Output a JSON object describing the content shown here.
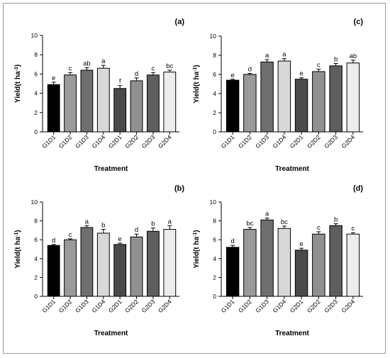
{
  "chart_data": [
    {
      "type": "bar",
      "panel_label": "(a)",
      "categories": [
        "G1D1",
        "G1D2",
        "G1D3",
        "G1D4",
        "G2D1",
        "G2D2",
        "G2D3",
        "G2D4"
      ],
      "values": [
        4.9,
        5.9,
        6.4,
        6.6,
        4.5,
        5.3,
        5.9,
        6.2
      ],
      "errors": [
        0.25,
        0.25,
        0.25,
        0.3,
        0.3,
        0.3,
        0.25,
        0.2
      ],
      "letters": [
        "e",
        "c",
        "ab",
        "a",
        "f",
        "d",
        "c",
        "bc"
      ],
      "colors": [
        "#000000",
        "#9a9a9a",
        "#6f6f6f",
        "#d8d8d8",
        "#4a4a4a",
        "#909090",
        "#5e5e5e",
        "#ececec"
      ],
      "xlabel": "Treatment",
      "ylabel": "Yield(t ha-1)",
      "ylim": [
        0,
        10
      ],
      "yticks": [
        0,
        2,
        4,
        6,
        8,
        10
      ],
      "grid": false
    },
    {
      "type": "bar",
      "panel_label": "(c)",
      "categories": [
        "G1D1",
        "G1D2",
        "G1D3",
        "G1D4",
        "G2D1",
        "G2D2",
        "G2D3",
        "G2D4"
      ],
      "values": [
        5.4,
        6.0,
        7.3,
        7.4,
        5.5,
        6.3,
        6.9,
        7.2
      ],
      "errors": [
        0.1,
        0.1,
        0.25,
        0.25,
        0.15,
        0.25,
        0.25,
        0.3
      ],
      "letters": [
        "e",
        "d",
        "a",
        "a",
        "e",
        "c",
        "b",
        "ab"
      ],
      "colors": [
        "#000000",
        "#9a9a9a",
        "#6f6f6f",
        "#d8d8d8",
        "#4a4a4a",
        "#909090",
        "#5e5e5e",
        "#ececec"
      ],
      "xlabel": "Treatment",
      "ylabel": "Yield(t ha-1)",
      "ylim": [
        0,
        10
      ],
      "yticks": [
        0,
        2,
        4,
        6,
        8,
        10
      ],
      "grid": false
    },
    {
      "type": "bar",
      "panel_label": "(b)",
      "categories": [
        "G1D1",
        "G1D2",
        "G1D3",
        "G1D4",
        "G2D1",
        "G2D2",
        "G2D3",
        "G2D4"
      ],
      "values": [
        5.4,
        6.0,
        7.3,
        6.7,
        5.5,
        6.3,
        6.9,
        7.1
      ],
      "errors": [
        0.1,
        0.1,
        0.2,
        0.4,
        0.15,
        0.3,
        0.35,
        0.4
      ],
      "letters": [
        "d",
        "c",
        "a",
        "b",
        "e",
        "d",
        "b",
        "a"
      ],
      "colors": [
        "#000000",
        "#9a9a9a",
        "#6f6f6f",
        "#d8d8d8",
        "#4a4a4a",
        "#909090",
        "#5e5e5e",
        "#ececec"
      ],
      "xlabel": "Treatment",
      "ylabel": "Yield(t ha-1)",
      "ylim": [
        0,
        10
      ],
      "yticks": [
        0,
        2,
        4,
        6,
        8,
        10
      ],
      "grid": false
    },
    {
      "type": "bar",
      "panel_label": "(d)",
      "categories": [
        "G1D1",
        "G1D2",
        "G1D3",
        "G1D4",
        "G2D1",
        "G2D2",
        "G2D3",
        "G2D4"
      ],
      "values": [
        5.2,
        7.1,
        8.1,
        7.2,
        4.9,
        6.6,
        7.5,
        6.6
      ],
      "errors": [
        0.2,
        0.2,
        0.2,
        0.25,
        0.2,
        0.25,
        0.2,
        0.15
      ],
      "letters": [
        "d",
        "bc",
        "a",
        "bc",
        "e",
        "c",
        "b",
        "c"
      ],
      "colors": [
        "#000000",
        "#9a9a9a",
        "#6f6f6f",
        "#d8d8d8",
        "#4a4a4a",
        "#909090",
        "#5e5e5e",
        "#ececec"
      ],
      "xlabel": "Treatment",
      "ylabel": "Yield(t ha-1)",
      "ylim": [
        0,
        10
      ],
      "yticks": [
        0,
        2,
        4,
        6,
        8,
        10
      ],
      "grid": false
    }
  ]
}
